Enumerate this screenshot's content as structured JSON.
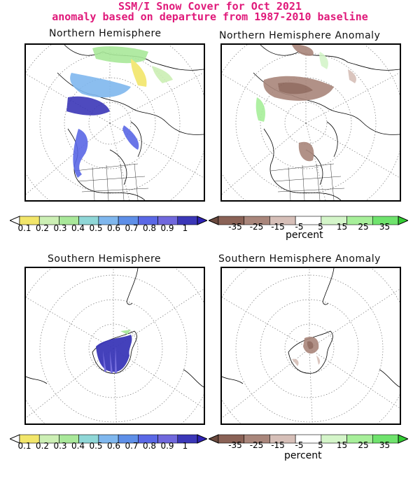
{
  "title": {
    "line1": "SSM/I Snow Cover for Oct 2021",
    "line2": "anomaly based on departure from 1987-2010 baseline"
  },
  "panels": {
    "nh": {
      "title": "Northern Hemisphere"
    },
    "nh_anom": {
      "title": "Northern Hemisphere Anomaly"
    },
    "sh": {
      "title": "Southern Hemisphere"
    },
    "sh_anom": {
      "title": "Southern Hemisphere Anomaly"
    }
  },
  "cover_scale": {
    "labels": [
      "0.1",
      "0.2",
      "0.3",
      "0.4",
      "0.5",
      "0.6",
      "0.7",
      "0.8",
      "0.9",
      "1"
    ],
    "colors": [
      "#ffffff",
      "#f2e66a",
      "#ccefb4",
      "#a9e89a",
      "#8fd7d7",
      "#7fb7ee",
      "#5e8fe8",
      "#5a68e6",
      "#7068dd",
      "#3b37b8",
      "#2e22b6"
    ]
  },
  "anomaly_scale": {
    "labels": [
      "-35",
      "-25",
      "-15",
      "-5",
      "5",
      "15",
      "25",
      "35"
    ],
    "colors": [
      "#6b4a3e",
      "#8a6256",
      "#a9867b",
      "#d6bfb8",
      "#ffffff",
      "#d4f5c9",
      "#a7ef9a",
      "#6fe36d",
      "#33cc33"
    ],
    "unit": "percent"
  }
}
